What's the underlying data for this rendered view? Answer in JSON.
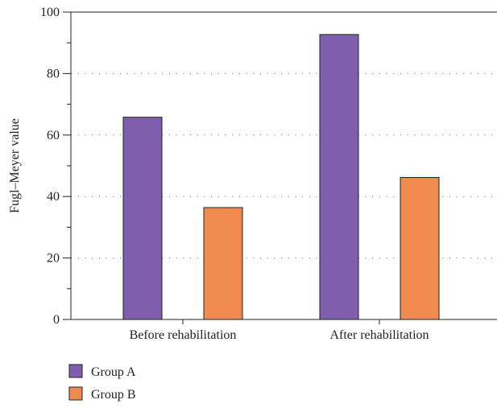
{
  "chart_data": {
    "type": "bar",
    "title": "",
    "xlabel": "",
    "ylabel": "Fugl–Meyer value",
    "ylim": [
      0,
      100
    ],
    "yticks": [
      0,
      20,
      40,
      60,
      80,
      100
    ],
    "categories": [
      "Before rehabilitation",
      "After rehabilitation"
    ],
    "series": [
      {
        "name": "Group A",
        "color": "#7f5ead",
        "values": [
          65.8,
          92.7
        ]
      },
      {
        "name": "Group B",
        "color": "#f08a4f",
        "values": [
          36.4,
          46.2
        ]
      }
    ],
    "grid": "horizontal dotted at 20, 40, 60, 80",
    "legend_position": "bottom-left"
  }
}
